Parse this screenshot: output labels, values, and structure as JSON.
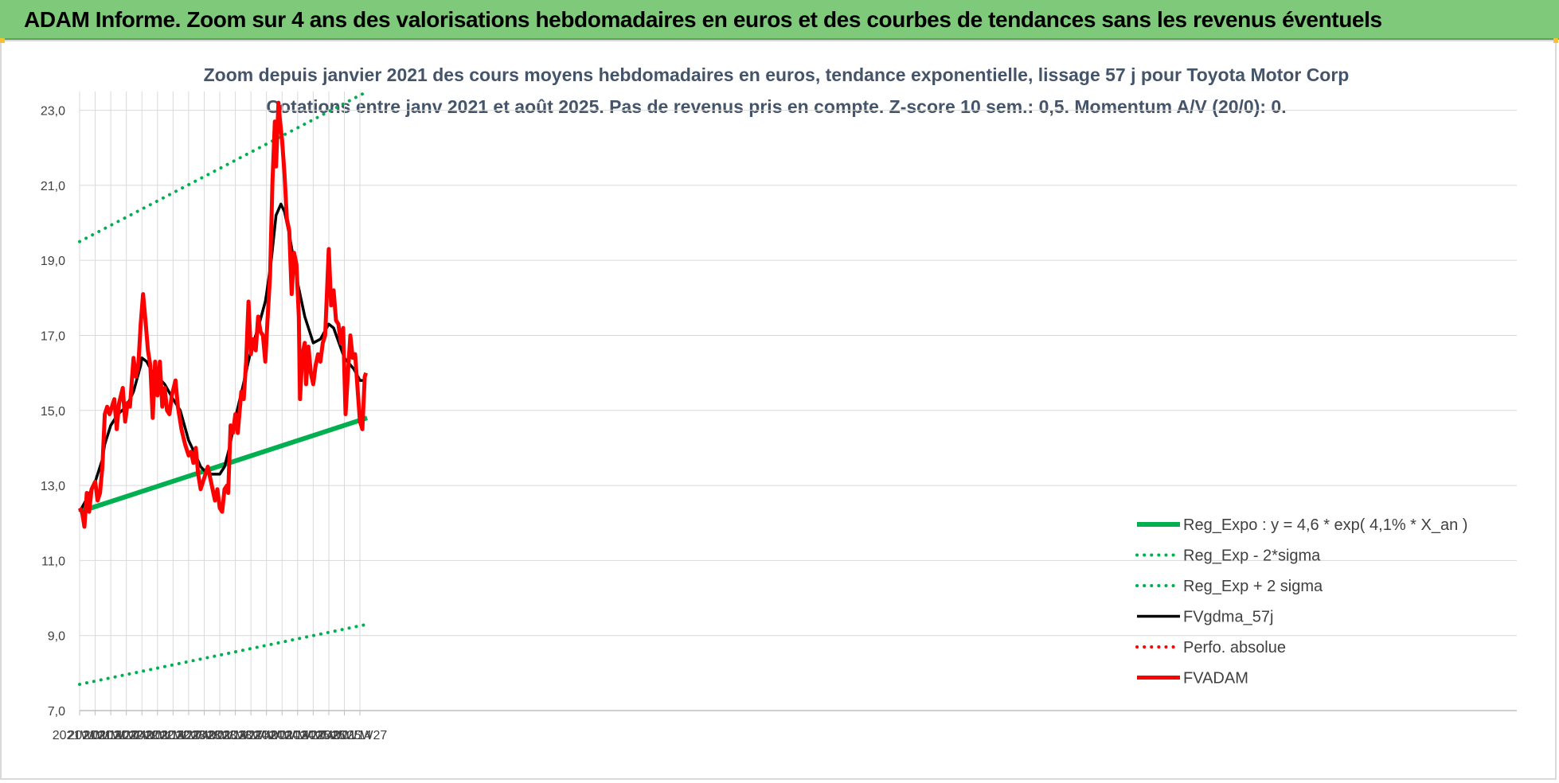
{
  "banner": {
    "text": "ADAM Informe. Zoom sur 4 ans des valorisations hebdomadaires en euros et des courbes de tendances sans les revenus éventuels"
  },
  "colors": {
    "banner": "#7ec97a",
    "reg_expo": "#00b050",
    "fvgdma": "#000000",
    "fvadam": "#ff0000",
    "perfo": "#ff0000",
    "title": "#44546a"
  },
  "chart_data": {
    "type": "line",
    "title": "Zoom depuis janvier 2021 des cours moyens hebdomadaires en euros, tendance exponentielle, lissage 57 j pour Toyota Motor Corp",
    "subtitle": "Cotations entre janv 2021 et août 2025.  Pas de revenus pris en compte. Z-score 10 sem.: 0,5. Momentum A/V (20/0): 0.",
    "ylim": [
      7,
      23.5
    ],
    "yticks": [
      "7,0",
      "9,0",
      "11,0",
      "13,0",
      "15,0",
      "17,0",
      "19,0",
      "21,0",
      "23,0"
    ],
    "xticks": [
      "2021W01",
      "2021W14",
      "2021W27",
      "2021W40",
      "2022W01",
      "2022W14",
      "2022W27",
      "2022W40",
      "2023W01",
      "2023W14",
      "2023W27",
      "2023W40",
      "2024W01",
      "2024W14",
      "2024W27",
      "2024W40",
      "2025W01",
      "2025W14",
      "2025W27"
    ],
    "grid": true,
    "legend_position": "bottom-right",
    "series": [
      {
        "name": "Reg_Expo : y = 4,6 * exp( 4,1% *  X_an )",
        "style": "solid-thick",
        "color": "#00b050",
        "points": [
          [
            "2021W01",
            12.3
          ],
          [
            "2025W33",
            14.8
          ]
        ]
      },
      {
        "name": "Reg_Exp - 2*sigma",
        "style": "dotted",
        "color": "#00b050",
        "points": [
          [
            "2021W01",
            7.7
          ],
          [
            "2025W33",
            9.3
          ]
        ]
      },
      {
        "name": "Reg_Exp + 2 sigma",
        "style": "dotted",
        "color": "#00b050",
        "points": [
          [
            "2021W01",
            19.5
          ],
          [
            "2025W33",
            23.5
          ]
        ]
      },
      {
        "name": "FVgdma_57j",
        "style": "solid",
        "color": "#000000",
        "points": [
          [
            "2021W01",
            12.3
          ],
          [
            "2021W08",
            12.7
          ],
          [
            "2021W14",
            13.1
          ],
          [
            "2021W20",
            13.7
          ],
          [
            "2021W22",
            14.1
          ],
          [
            "2021W27",
            14.6
          ],
          [
            "2021W33",
            14.9
          ],
          [
            "2021W40",
            15.1
          ],
          [
            "2021W46",
            15.5
          ],
          [
            "2021W52",
            16.2
          ],
          [
            "2022W01",
            16.4
          ],
          [
            "2022W05",
            16.3
          ],
          [
            "2022W10",
            16.0
          ],
          [
            "2022W14",
            15.9
          ],
          [
            "2022W20",
            15.7
          ],
          [
            "2022W27",
            15.3
          ],
          [
            "2022W33",
            15.0
          ],
          [
            "2022W40",
            14.2
          ],
          [
            "2022W46",
            13.8
          ],
          [
            "2022W50",
            13.5
          ],
          [
            "2023W01",
            13.4
          ],
          [
            "2023W07",
            13.3
          ],
          [
            "2023W14",
            13.3
          ],
          [
            "2023W18",
            13.5
          ],
          [
            "2023W22",
            14.0
          ],
          [
            "2023W27",
            14.8
          ],
          [
            "2023W33",
            15.6
          ],
          [
            "2023W40",
            16.6
          ],
          [
            "2023W46",
            17.2
          ],
          [
            "2023W52",
            17.9
          ],
          [
            "2024W01",
            18.1
          ],
          [
            "2024W05",
            19.0
          ],
          [
            "2024W09",
            20.2
          ],
          [
            "2024W13",
            20.5
          ],
          [
            "2024W16",
            20.3
          ],
          [
            "2024W20",
            19.7
          ],
          [
            "2024W27",
            18.4
          ],
          [
            "2024W33",
            17.5
          ],
          [
            "2024W38",
            17.0
          ],
          [
            "2024W40",
            16.8
          ],
          [
            "2024W46",
            16.9
          ],
          [
            "2025W01",
            17.3
          ],
          [
            "2025W05",
            17.2
          ],
          [
            "2025W14",
            16.4
          ],
          [
            "2025W22",
            16.1
          ],
          [
            "2025W27",
            15.8
          ],
          [
            "2025W32",
            15.8
          ]
        ]
      },
      {
        "name": "Perfo. absolue",
        "style": "dotted",
        "color": "#ff0000",
        "points": []
      },
      {
        "name": "FVADAM",
        "style": "solid-thick",
        "color": "#ff0000",
        "points": [
          [
            "2021W01",
            12.4
          ],
          [
            "2021W03",
            12.3
          ],
          [
            "2021W05",
            11.9
          ],
          [
            "2021W07",
            12.8
          ],
          [
            "2021W09",
            12.3
          ],
          [
            "2021W11",
            12.9
          ],
          [
            "2021W14",
            13.1
          ],
          [
            "2021W16",
            12.6
          ],
          [
            "2021W18",
            12.8
          ],
          [
            "2021W20",
            13.5
          ],
          [
            "2021W22",
            14.9
          ],
          [
            "2021W24",
            15.1
          ],
          [
            "2021W26",
            14.9
          ],
          [
            "2021W28",
            15.1
          ],
          [
            "2021W30",
            15.3
          ],
          [
            "2021W32",
            14.5
          ],
          [
            "2021W34",
            15.2
          ],
          [
            "2021W37",
            15.6
          ],
          [
            "2021W39",
            14.7
          ],
          [
            "2021W41",
            15.2
          ],
          [
            "2021W43",
            15.1
          ],
          [
            "2021W46",
            16.4
          ],
          [
            "2021W48",
            15.9
          ],
          [
            "2021W50",
            16.2
          ],
          [
            "2021W52",
            17.3
          ],
          [
            "2022W02",
            18.1
          ],
          [
            "2022W04",
            17.4
          ],
          [
            "2022W06",
            16.6
          ],
          [
            "2022W08",
            16.2
          ],
          [
            "2022W10",
            14.8
          ],
          [
            "2022W12",
            16.3
          ],
          [
            "2022W14",
            15.4
          ],
          [
            "2022W16",
            16.3
          ],
          [
            "2022W18",
            15.1
          ],
          [
            "2022W20",
            15.6
          ],
          [
            "2022W22",
            15.0
          ],
          [
            "2022W24",
            14.9
          ],
          [
            "2022W26",
            15.4
          ],
          [
            "2022W29",
            15.8
          ],
          [
            "2022W31",
            15.1
          ],
          [
            "2022W34",
            14.5
          ],
          [
            "2022W37",
            14.1
          ],
          [
            "2022W40",
            13.8
          ],
          [
            "2022W42",
            13.9
          ],
          [
            "2022W44",
            13.6
          ],
          [
            "2022W46",
            14.0
          ],
          [
            "2022W48",
            13.3
          ],
          [
            "2022W50",
            12.9
          ],
          [
            "2023W02",
            13.3
          ],
          [
            "2023W04",
            13.5
          ],
          [
            "2023W06",
            13.2
          ],
          [
            "2023W08",
            12.9
          ],
          [
            "2023W10",
            12.6
          ],
          [
            "2023W12",
            12.9
          ],
          [
            "2023W14",
            12.4
          ],
          [
            "2023W16",
            12.3
          ],
          [
            "2023W18",
            12.9
          ],
          [
            "2023W20",
            13.0
          ],
          [
            "2023W21",
            12.8
          ],
          [
            "2023W23",
            14.6
          ],
          [
            "2023W25",
            14.4
          ],
          [
            "2023W27",
            14.9
          ],
          [
            "2023W29",
            14.4
          ],
          [
            "2023W32",
            15.5
          ],
          [
            "2023W34",
            15.3
          ],
          [
            "2023W36",
            16.3
          ],
          [
            "2023W38",
            17.9
          ],
          [
            "2023W40",
            16.5
          ],
          [
            "2023W42",
            16.9
          ],
          [
            "2023W44",
            16.6
          ],
          [
            "2023W46",
            17.5
          ],
          [
            "2023W48",
            17.1
          ],
          [
            "2023W50",
            17.0
          ],
          [
            "2023W52",
            16.3
          ],
          [
            "2024W02",
            17.5
          ],
          [
            "2024W04",
            18.6
          ],
          [
            "2024W06",
            21.1
          ],
          [
            "2024W08",
            22.7
          ],
          [
            "2024W09",
            21.5
          ],
          [
            "2024W11",
            23.2
          ],
          [
            "2024W12",
            22.8
          ],
          [
            "2024W14",
            22.2
          ],
          [
            "2024W16",
            21.3
          ],
          [
            "2024W18",
            20.1
          ],
          [
            "2024W20",
            19.8
          ],
          [
            "2024W22",
            18.1
          ],
          [
            "2024W24",
            19.2
          ],
          [
            "2024W26",
            18.9
          ],
          [
            "2024W28",
            17.5
          ],
          [
            "2024W29",
            15.3
          ],
          [
            "2024W31",
            16.5
          ],
          [
            "2024W33",
            16.8
          ],
          [
            "2024W34",
            15.7
          ],
          [
            "2024W36",
            16.7
          ],
          [
            "2024W38",
            16.0
          ],
          [
            "2024W40",
            15.7
          ],
          [
            "2024W42",
            16.2
          ],
          [
            "2024W44",
            16.5
          ],
          [
            "2024W46",
            16.3
          ],
          [
            "2024W48",
            16.8
          ],
          [
            "2024W50",
            17.0
          ],
          [
            "2025W01",
            19.3
          ],
          [
            "2025W03",
            17.8
          ],
          [
            "2025W05",
            18.2
          ],
          [
            "2025W07",
            17.4
          ],
          [
            "2025W09",
            17.3
          ],
          [
            "2025W11",
            16.8
          ],
          [
            "2025W13",
            17.2
          ],
          [
            "2025W15",
            14.9
          ],
          [
            "2025W17",
            16.0
          ],
          [
            "2025W19",
            17.0
          ],
          [
            "2025W21",
            16.4
          ],
          [
            "2025W23",
            16.5
          ],
          [
            "2025W25",
            15.6
          ],
          [
            "2025W27",
            14.7
          ],
          [
            "2025W29",
            14.5
          ],
          [
            "2025W31",
            15.9
          ],
          [
            "2025W32",
            16.0
          ]
        ]
      }
    ]
  }
}
